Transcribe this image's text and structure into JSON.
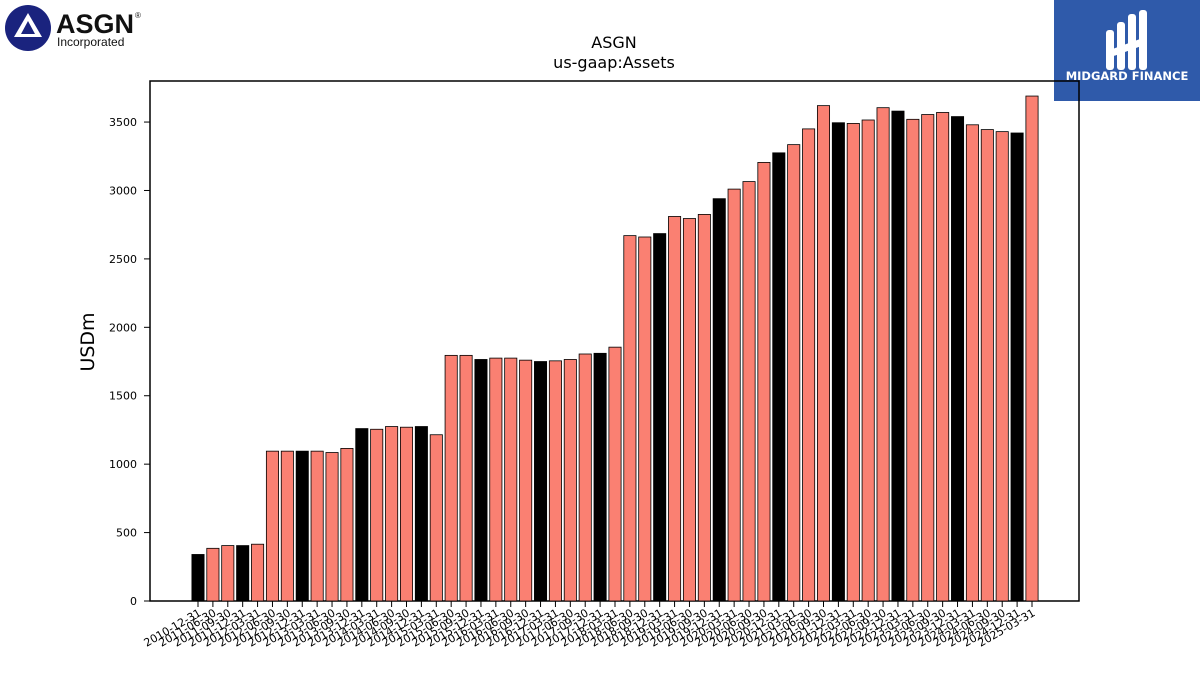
{
  "logos": {
    "left_name": "ASGN",
    "left_sub": "Incorporated",
    "left_reg": "®",
    "right_name": "MIDGARD FINANCE"
  },
  "colors": {
    "default_bar": "#fa8072",
    "highlight_bar": "#000000",
    "brand_blue": "#2f5aaa"
  },
  "chart_data": {
    "type": "bar",
    "title": "ASGN",
    "subtitle": "us-gaap:Assets",
    "ylabel": "USDm",
    "xlabel": "",
    "ylim": [
      0,
      3800
    ],
    "yticks": [
      0,
      500,
      1000,
      1500,
      2000,
      2500,
      3000,
      3500
    ],
    "grid": false,
    "categories": [
      "2010-12-31",
      "2011-06-30",
      "2011-09-30",
      "2011-12-31",
      "2012-03-31",
      "2012-06-30",
      "2012-09-30",
      "2012-12-31",
      "2013-03-31",
      "2013-06-30",
      "2013-09-30",
      "2013-12-31",
      "2014-03-31",
      "2014-06-30",
      "2014-09-30",
      "2014-12-31",
      "2015-03-31",
      "2015-06-30",
      "2015-09-30",
      "2015-12-31",
      "2016-03-31",
      "2016-06-30",
      "2016-09-30",
      "2016-12-31",
      "2017-03-31",
      "2017-06-30",
      "2017-09-30",
      "2017-12-31",
      "2018-03-31",
      "2018-06-30",
      "2018-09-30",
      "2018-12-31",
      "2019-03-31",
      "2019-06-30",
      "2019-09-30",
      "2019-12-31",
      "2020-03-31",
      "2020-06-30",
      "2020-09-30",
      "2020-12-31",
      "2021-03-31",
      "2021-06-30",
      "2021-09-30",
      "2021-12-31",
      "2022-03-31",
      "2022-06-30",
      "2022-09-30",
      "2022-12-31",
      "2023-03-31",
      "2023-06-30",
      "2023-09-30",
      "2023-12-31",
      "2024-03-31",
      "2024-06-30",
      "2024-09-30",
      "2024-12-31",
      "2025-03-31"
    ],
    "values": [
      340,
      385,
      405,
      405,
      415,
      1095,
      1095,
      1095,
      1095,
      1085,
      1115,
      1260,
      1255,
      1275,
      1270,
      1275,
      1215,
      1795,
      1795,
      1765,
      1775,
      1775,
      1760,
      1750,
      1755,
      1765,
      1805,
      1810,
      1855,
      2670,
      2660,
      2685,
      2810,
      2795,
      2825,
      2940,
      3010,
      3065,
      3205,
      3275,
      3335,
      3450,
      3620,
      3495,
      3490,
      3515,
      3605,
      3580,
      3520,
      3555,
      3570,
      3540,
      3480,
      3445,
      3430,
      3420,
      3690
    ],
    "highlight": [
      true,
      false,
      false,
      true,
      false,
      false,
      false,
      true,
      false,
      false,
      false,
      true,
      false,
      false,
      false,
      true,
      false,
      false,
      false,
      true,
      false,
      false,
      false,
      true,
      false,
      false,
      false,
      true,
      false,
      false,
      false,
      true,
      false,
      false,
      false,
      true,
      false,
      false,
      false,
      true,
      false,
      false,
      false,
      true,
      false,
      false,
      false,
      true,
      false,
      false,
      false,
      true,
      false,
      false,
      false,
      true,
      false
    ],
    "tick_labels": [
      "2010-12-31",
      "2011-06-30",
      "2011-09-30",
      "2011-12-31",
      "2012-03-31",
      "2012-06-30",
      "2012-09-30",
      "2012-12-31",
      "2013-03-31",
      "2013-06-30",
      "2013-09-30",
      "2013-12-31",
      "2014-03-31",
      "2014-06-30",
      "2014-09-30",
      "2014-12-31",
      "2015-03-31",
      "2015-06-30",
      "2015-09-30",
      "2015-12-31",
      "2016-03-31",
      "2016-06-30",
      "2016-09-30",
      "2016-12-31",
      "2017-03-31",
      "2017-06-30",
      "2017-09-30",
      "2017-12-31",
      "2018-03-31",
      "2018-06-30",
      "2018-09-30",
      "2018-12-31",
      "2019-03-31",
      "2019-06-30",
      "2019-09-30",
      "2019-12-31",
      "2020-03-31",
      "2020-06-30",
      "2020-09-30",
      "2020-12-31",
      "2021-03-31",
      "2021-06-30",
      "2021-09-30",
      "2021-12-31",
      "2022-03-31",
      "2022-06-30",
      "2022-09-30",
      "2022-12-31",
      "2023-03-31",
      "2023-06-30",
      "2023-09-30",
      "2023-12-31",
      "2024-03-31",
      "2024-06-30",
      "2024-09-30",
      "2024-12-31",
      "2025-03-31"
    ]
  }
}
